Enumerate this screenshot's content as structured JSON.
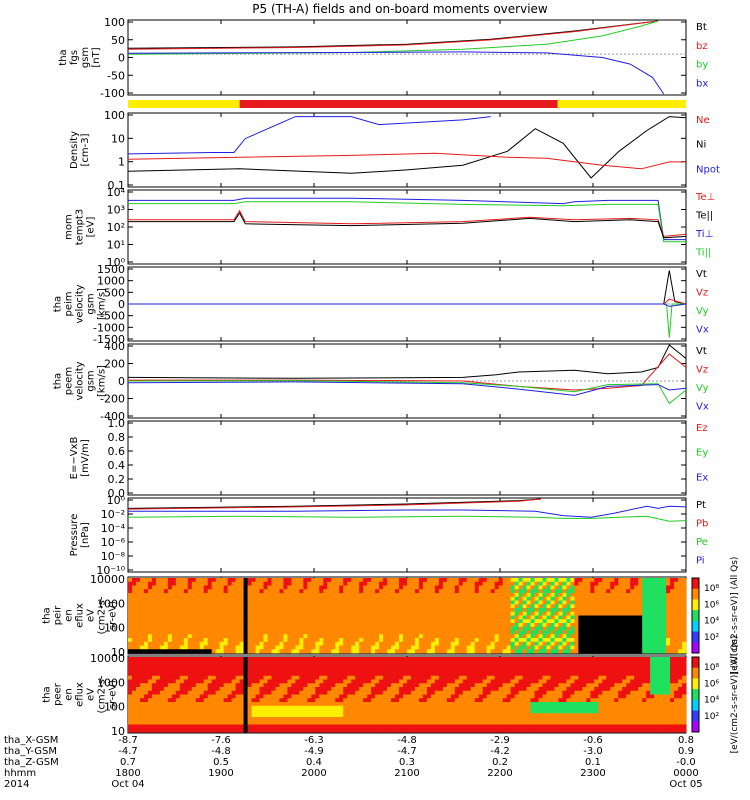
{
  "title": "P5 (TH-A) fields and on-board moments overview",
  "colors": {
    "black": "#000000",
    "red": "#e41a1c",
    "green": "#22cc22",
    "blue": "#1f1fe0",
    "yellow": "#ffee00"
  },
  "chart_data": [
    {
      "type": "line",
      "id": "fgs",
      "ylabel": [
        "tha",
        "fgs",
        "gsm",
        "[nT]"
      ],
      "yticks": [
        "100",
        "50",
        "0",
        "-50",
        "-100"
      ],
      "ylim": [
        -120,
        100
      ],
      "legend": [
        {
          "name": "Bt",
          "color": "black"
        },
        {
          "name": "bz",
          "color": "red"
        },
        {
          "name": "by",
          "color": "green"
        },
        {
          "name": "bx",
          "color": "blue"
        }
      ],
      "series": [
        {
          "name": "Bt",
          "color": "black",
          "x": [
            0.0,
            0.3,
            0.5,
            0.65,
            0.8,
            0.95
          ],
          "y": [
            18,
            22,
            30,
            45,
            70,
            100
          ]
        },
        {
          "name": "bz",
          "color": "red",
          "x": [
            0.0,
            0.3,
            0.5,
            0.65,
            0.8,
            0.95
          ],
          "y": [
            15,
            20,
            28,
            43,
            68,
            100
          ]
        },
        {
          "name": "by",
          "color": "green",
          "x": [
            0.0,
            0.4,
            0.6,
            0.75,
            0.85,
            0.92,
            0.95
          ],
          "y": [
            0,
            5,
            15,
            30,
            55,
            85,
            100
          ]
        },
        {
          "name": "bx",
          "color": "blue",
          "x": [
            0.0,
            0.4,
            0.6,
            0.75,
            0.85,
            0.9,
            0.94,
            0.96
          ],
          "y": [
            3,
            5,
            7,
            4,
            -10,
            -30,
            -70,
            -120
          ]
        }
      ]
    },
    {
      "type": "status_bar",
      "id": "mode",
      "segments": [
        {
          "start": 0.0,
          "end": 0.2,
          "color": "yellow"
        },
        {
          "start": 0.2,
          "end": 0.77,
          "color": "red"
        },
        {
          "start": 0.77,
          "end": 1.0,
          "color": "yellow"
        }
      ]
    },
    {
      "type": "line",
      "id": "density",
      "log": true,
      "ylabel": [
        "Density",
        "[cm-3]"
      ],
      "yticks": [
        "100",
        "10",
        "1",
        "0.1"
      ],
      "ylim": [
        0.5,
        250
      ],
      "legend": [
        {
          "name": "Ne",
          "color": "red"
        },
        {
          "name": "Ni",
          "color": "black"
        },
        {
          "name": "Npot",
          "color": "blue"
        }
      ],
      "series": [
        {
          "name": "Npot",
          "color": "blue",
          "x": [
            0.0,
            0.15,
            0.19,
            0.21,
            0.3,
            0.4,
            0.45,
            0.6,
            0.65
          ],
          "y": [
            8,
            9,
            9,
            30,
            200,
            200,
            100,
            150,
            200
          ]
        },
        {
          "name": "Ni",
          "color": "black",
          "x": [
            0.0,
            0.2,
            0.4,
            0.5,
            0.6,
            0.68,
            0.73,
            0.78,
            0.83,
            0.88,
            0.93,
            0.97,
            1.0
          ],
          "y": [
            1.8,
            2.2,
            1.5,
            2.0,
            3,
            10,
            70,
            20,
            1.0,
            10,
            60,
            200,
            180
          ]
        },
        {
          "name": "Ne",
          "color": "red",
          "x": [
            0.0,
            0.2,
            0.4,
            0.55,
            0.68,
            0.75,
            0.85,
            0.92,
            0.97,
            1.0
          ],
          "y": [
            5,
            6,
            7,
            8.5,
            6,
            5.5,
            3,
            2.2,
            4,
            4
          ]
        }
      ]
    },
    {
      "type": "line",
      "id": "temperature",
      "log": true,
      "ylabel": [
        "mom",
        "tempt3",
        "[eV]"
      ],
      "yticks": [
        "10⁴",
        "10³",
        "10²",
        "10¹",
        "10⁰"
      ],
      "ylim": [
        1,
        10000
      ],
      "legend": [
        {
          "name": "Te⊥",
          "color": "red"
        },
        {
          "name": "Te||",
          "color": "black"
        },
        {
          "name": "Ti⊥",
          "color": "blue"
        },
        {
          "name": "Ti||",
          "color": "green"
        }
      ],
      "series": [
        {
          "name": "Ti⊥",
          "color": "blue",
          "x": [
            0.0,
            0.19,
            0.21,
            0.4,
            0.6,
            0.78,
            0.8,
            0.86,
            0.95,
            0.96,
            1.0
          ],
          "y": [
            3000,
            3000,
            4000,
            4000,
            3000,
            2000,
            2500,
            3000,
            3000,
            20,
            20
          ]
        },
        {
          "name": "Ti||",
          "color": "green",
          "x": [
            0.0,
            0.19,
            0.21,
            0.4,
            0.6,
            0.78,
            0.86,
            0.95,
            0.96,
            1.0
          ],
          "y": [
            2000,
            2000,
            2500,
            2500,
            1800,
            1500,
            1800,
            1800,
            15,
            15
          ]
        },
        {
          "name": "Te⊥",
          "color": "red",
          "x": [
            0.0,
            0.19,
            0.2,
            0.21,
            0.4,
            0.6,
            0.72,
            0.8,
            0.9,
            0.95,
            0.96,
            1.0
          ],
          "y": [
            250,
            250,
            800,
            200,
            150,
            200,
            350,
            250,
            300,
            250,
            30,
            40
          ]
        },
        {
          "name": "Te||",
          "color": "black",
          "x": [
            0.0,
            0.19,
            0.2,
            0.21,
            0.4,
            0.6,
            0.72,
            0.8,
            0.9,
            0.95,
            0.96,
            1.0
          ],
          "y": [
            200,
            200,
            600,
            150,
            120,
            160,
            300,
            200,
            250,
            200,
            25,
            30
          ]
        }
      ]
    },
    {
      "type": "line",
      "id": "peim",
      "ylabel": [
        "tha",
        "peim",
        "velocity",
        "gsm",
        "[km/s]"
      ],
      "yticks": [
        "1500",
        "1000",
        "500",
        "0",
        "-500",
        "-1000",
        "-1500"
      ],
      "ylim": [
        -1500,
        1500
      ],
      "legend": [
        {
          "name": "Vt",
          "color": "black"
        },
        {
          "name": "Vz",
          "color": "red"
        },
        {
          "name": "Vy",
          "color": "green"
        },
        {
          "name": "Vx",
          "color": "blue"
        }
      ],
      "series": [
        {
          "name": "Vt",
          "color": "black",
          "x": [
            0.0,
            0.96,
            0.97,
            0.98,
            1.0
          ],
          "y": [
            0,
            0,
            1400,
            100,
            0
          ]
        },
        {
          "name": "Vz",
          "color": "red",
          "x": [
            0.0,
            0.96,
            0.97,
            1.0
          ],
          "y": [
            0,
            0,
            200,
            0
          ]
        },
        {
          "name": "Vy",
          "color": "green",
          "x": [
            0.0,
            0.965,
            0.97,
            0.975,
            1.0
          ],
          "y": [
            0,
            0,
            -1400,
            0,
            0
          ]
        },
        {
          "name": "Vx",
          "color": "blue",
          "x": [
            0.0,
            0.96,
            0.97,
            1.0
          ],
          "y": [
            0,
            0,
            -100,
            0
          ]
        }
      ]
    },
    {
      "type": "line",
      "id": "peem",
      "ylabel": [
        "tha",
        "peem",
        "velocity",
        "gsm",
        "[km/s]"
      ],
      "yticks": [
        "400",
        "200",
        "0",
        "-200",
        "-400"
      ],
      "ylim": [
        -400,
        400
      ],
      "legend": [
        {
          "name": "Vt",
          "color": "black"
        },
        {
          "name": "Vz",
          "color": "red"
        },
        {
          "name": "Vy",
          "color": "green"
        },
        {
          "name": "Vx",
          "color": "blue"
        }
      ],
      "series": [
        {
          "name": "Vt",
          "color": "black",
          "x": [
            0.0,
            0.3,
            0.6,
            0.66,
            0.7,
            0.8,
            0.86,
            0.92,
            0.95,
            0.97,
            1.0
          ],
          "y": [
            40,
            30,
            40,
            70,
            100,
            120,
            80,
            100,
            150,
            400,
            250
          ]
        },
        {
          "name": "Vz",
          "color": "red",
          "x": [
            0.0,
            0.3,
            0.6,
            0.7,
            0.8,
            0.86,
            0.92,
            0.97,
            1.0
          ],
          "y": [
            10,
            10,
            0,
            -60,
            -100,
            -80,
            -50,
            300,
            150
          ]
        },
        {
          "name": "Vy",
          "color": "green",
          "x": [
            0.0,
            0.3,
            0.6,
            0.7,
            0.8,
            0.86,
            0.95,
            0.97,
            1.0
          ],
          "y": [
            0,
            5,
            -20,
            -60,
            -120,
            -40,
            -30,
            -250,
            -100
          ]
        },
        {
          "name": "Vx",
          "color": "blue",
          "x": [
            0.0,
            0.3,
            0.6,
            0.7,
            0.8,
            0.86,
            0.95,
            0.97,
            1.0
          ],
          "y": [
            -20,
            -10,
            -30,
            -90,
            -160,
            -60,
            -40,
            -100,
            -80
          ]
        }
      ]
    },
    {
      "type": "line",
      "id": "efield",
      "ylabel": [
        "E=−VxB",
        "[mV/m]"
      ],
      "yticks": [
        "1.0",
        "0.8",
        "0.6",
        "0.4",
        "0.2",
        "0.0"
      ],
      "ylim": [
        0,
        1
      ],
      "legend": [
        {
          "name": "Ez",
          "color": "red"
        },
        {
          "name": "Ey",
          "color": "green"
        },
        {
          "name": "Ex",
          "color": "blue"
        }
      ],
      "series": []
    },
    {
      "type": "line",
      "id": "pressure",
      "log": true,
      "ylabel": [
        "Pressure",
        "[nPa]"
      ],
      "yticks": [
        "10⁰",
        "10⁻²",
        "10⁻⁴",
        "10⁻⁶",
        "10⁻⁸",
        "10⁻¹⁰"
      ],
      "ylim": [
        1e-10,
        1
      ],
      "legend": [
        {
          "name": "Pt",
          "color": "black"
        },
        {
          "name": "Pb",
          "color": "red"
        },
        {
          "name": "Pe",
          "color": "green"
        },
        {
          "name": "Pi",
          "color": "blue"
        }
      ],
      "series": [
        {
          "name": "Pt",
          "color": "black",
          "x": [
            0.0,
            0.3,
            0.5,
            0.7,
            0.74
          ],
          "y": [
            0.05,
            0.1,
            0.2,
            0.6,
            1.0
          ]
        },
        {
          "name": "Pb",
          "color": "red",
          "x": [
            0.0,
            0.3,
            0.5,
            0.7,
            0.74
          ],
          "y": [
            0.04,
            0.08,
            0.15,
            0.5,
            1.0
          ]
        },
        {
          "name": "Pi",
          "color": "blue",
          "x": [
            0.0,
            0.3,
            0.5,
            0.6,
            0.73,
            0.78,
            0.83,
            0.87,
            0.93,
            0.95,
            0.97,
            1.0
          ],
          "y": [
            0.02,
            0.02,
            0.03,
            0.03,
            0.02,
            0.005,
            0.003,
            0.01,
            0.1,
            0.05,
            0.1,
            0.08
          ]
        },
        {
          "name": "Pe",
          "color": "green",
          "x": [
            0.0,
            0.2,
            0.4,
            0.6,
            0.73,
            0.78,
            0.83,
            0.88,
            0.93,
            0.97,
            1.0
          ],
          "y": [
            0.003,
            0.004,
            0.003,
            0.004,
            0.003,
            0.002,
            0.002,
            0.003,
            0.004,
            0.0008,
            0.001
          ]
        }
      ]
    },
    {
      "type": "heatmap",
      "id": "peir",
      "ylabel": [
        "tha",
        "peir",
        "en",
        "eflux",
        "eV",
        "(cm2-s-",
        "sr-eV)"
      ],
      "yticks": [
        "10000",
        "1000",
        "100",
        "10"
      ],
      "colorbar": [
        "10⁸",
        "10⁶",
        "10⁴",
        "10²"
      ],
      "colorbar_label": "[eV/(cm2-s-sr-eV)] (All Qs)"
    },
    {
      "type": "heatmap",
      "id": "peer",
      "ylabel": [
        "tha",
        "peer",
        "en",
        "eflux",
        "eV",
        "(cm2-s-",
        "sr-eV)"
      ],
      "yticks": [
        "10000",
        "1000",
        "100",
        "10"
      ],
      "colorbar": [
        "10⁸",
        "10⁶",
        "10⁴",
        "10²"
      ],
      "colorbar_label": "[eV/(cm2-s-sr-eV)] (All Qs)"
    }
  ],
  "xaxis": {
    "row_labels": [
      "tha_X-GSM",
      "tha_Y-GSM",
      "tha_Z-GSM",
      "hhmm",
      "2014"
    ],
    "ticks": [
      {
        "x": 0.0,
        "vals": [
          "-8.7",
          "-4.7",
          "0.7",
          "1800",
          "Oct 04"
        ]
      },
      {
        "x": 0.1667,
        "vals": [
          "-7.6",
          "-4.8",
          "0.5",
          "1900",
          ""
        ]
      },
      {
        "x": 0.3333,
        "vals": [
          "-6.3",
          "-4.9",
          "0.4",
          "2000",
          ""
        ]
      },
      {
        "x": 0.5,
        "vals": [
          "-4.8",
          "-4.7",
          "0.3",
          "2100",
          ""
        ]
      },
      {
        "x": 0.6667,
        "vals": [
          "-2.9",
          "-4.2",
          "0.2",
          "2200",
          ""
        ]
      },
      {
        "x": 0.8333,
        "vals": [
          "-0.6",
          "-3.0",
          "0.1",
          "2300",
          ""
        ]
      },
      {
        "x": 1.0,
        "vals": [
          "0.8",
          "0.9",
          "-0.0",
          "0000",
          "Oct 05"
        ]
      }
    ]
  }
}
